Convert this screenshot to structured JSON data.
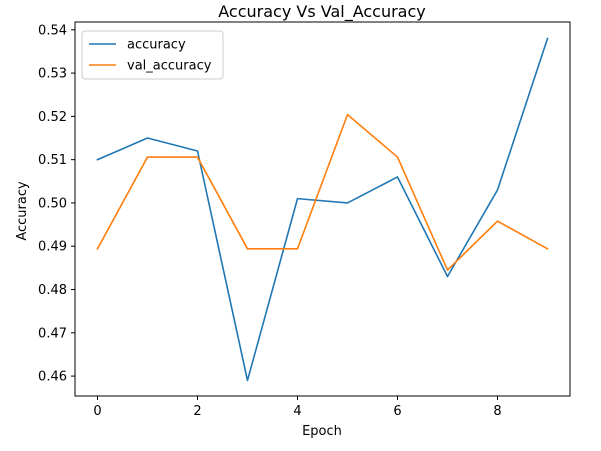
{
  "chart_data": {
    "type": "line",
    "title": "Accuracy Vs Val_Accuracy",
    "xlabel": "Epoch",
    "ylabel": "Accuracy",
    "x": [
      0,
      1,
      2,
      3,
      4,
      5,
      6,
      7,
      8,
      9
    ],
    "xlim": [
      -0.45,
      9.45
    ],
    "ylim": [
      0.4554,
      0.5418
    ],
    "xticks": [
      0,
      2,
      4,
      6,
      8
    ],
    "yticks": [
      0.46,
      0.47,
      0.48,
      0.49,
      0.5,
      0.51,
      0.52,
      0.53,
      0.54
    ],
    "xtick_labels": [
      "0",
      "2",
      "4",
      "6",
      "8"
    ],
    "ytick_labels": [
      "0.46",
      "0.47",
      "0.48",
      "0.49",
      "0.50",
      "0.51",
      "0.52",
      "0.53",
      "0.54"
    ],
    "grid": false,
    "legend_position": "top-left",
    "series": [
      {
        "name": "accuracy",
        "color": "#1f77b4",
        "values": [
          0.51,
          0.515,
          0.512,
          0.459,
          0.501,
          0.5,
          0.506,
          0.483,
          0.503,
          0.538
        ]
      },
      {
        "name": "val_accuracy",
        "color": "#ff7f0e",
        "values": [
          0.4894,
          0.5106,
          0.5106,
          0.4894,
          0.4894,
          0.5204,
          0.5106,
          0.4845,
          0.4958,
          0.4894
        ]
      }
    ]
  }
}
